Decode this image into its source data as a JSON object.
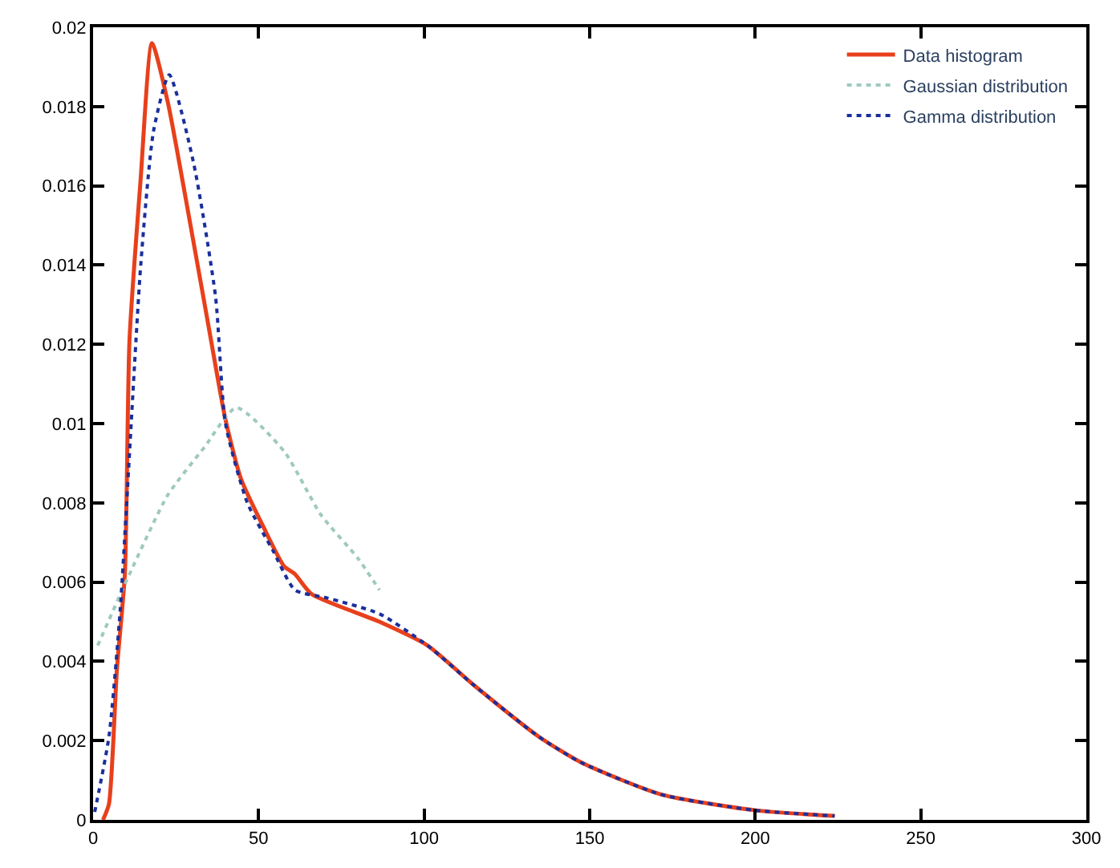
{
  "chart_data": {
    "type": "line",
    "xlim": [
      0,
      300
    ],
    "ylim": [
      0,
      0.02
    ],
    "xticks": [
      0,
      50,
      100,
      150,
      200,
      250,
      300
    ],
    "yticks": [
      0,
      0.002,
      0.004,
      0.006,
      0.008,
      0.01,
      0.012,
      0.014,
      0.016,
      0.018,
      0.02
    ],
    "legend": "top right",
    "marker": "none",
    "series": [
      {
        "name": "Data histogram",
        "color": "#e8401c",
        "line_style": "solid",
        "x": [
          3,
          4.8,
          7.2,
          9.6,
          11,
          14.4,
          17.8,
          22.6,
          28.8,
          35,
          40,
          44.7,
          51.4,
          57.7,
          61,
          66,
          86.5,
          101,
          115,
          134.6,
          147.6,
          171.6,
          200,
          224
        ],
        "values": [
          0,
          0.0004,
          0.0038,
          0.0062,
          0.0121,
          0.0162,
          0.0196,
          0.0181,
          0.0153,
          0.0124,
          0.0101,
          0.0086,
          0.0074,
          0.0064,
          0.0062,
          0.0057,
          0.005,
          0.0044,
          0.0034,
          0.0021,
          0.00144,
          0.00064,
          0.00024,
          0.0001
        ]
      },
      {
        "name": "Gaussian distribution",
        "color": "#9fc9c0",
        "line_style": "dotted",
        "x": [
          1.4,
          11,
          22.6,
          33.6,
          43.3,
          57.7,
          68.8,
          80,
          86.5
        ],
        "values": [
          0.0044,
          0.0062,
          0.0082,
          0.0094,
          0.0104,
          0.0093,
          0.0077,
          0.0066,
          0.0058
        ]
      },
      {
        "name": "Gamma distribution",
        "color": "#1a2f9c",
        "line_style": "dotted",
        "x": [
          0.5,
          4.8,
          8.2,
          14.4,
          18.3,
          23,
          30.3,
          37,
          40,
          46.6,
          54.3,
          61,
          70.7,
          86.5,
          101,
          115,
          134.6,
          147.6,
          171.6,
          200,
          224
        ],
        "values": [
          0.0002,
          0.0021,
          0.0053,
          0.014,
          0.0174,
          0.0188,
          0.0166,
          0.0132,
          0.01,
          0.008,
          0.0068,
          0.0058,
          0.0056,
          0.0052,
          0.0044,
          0.0034,
          0.0021,
          0.00144,
          0.00064,
          0.00024,
          0.0001
        ]
      }
    ]
  }
}
